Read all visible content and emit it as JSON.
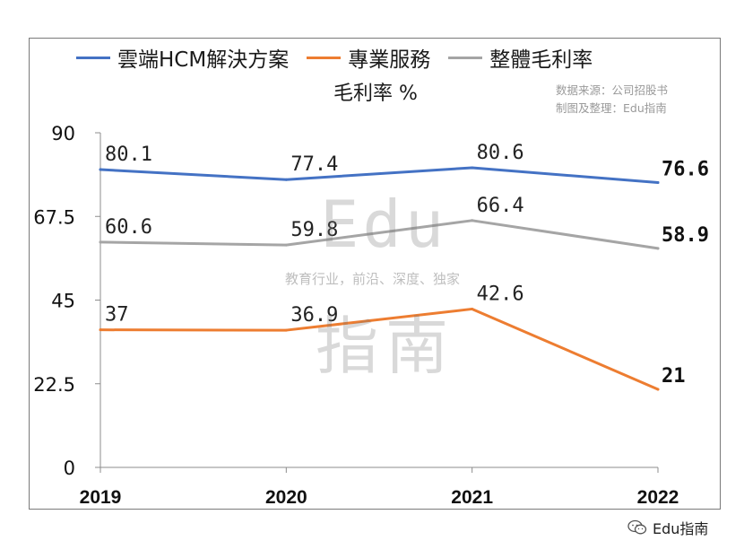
{
  "chart_data": {
    "type": "line",
    "title": "",
    "subtitle": "毛利率 %",
    "categories": [
      "2019",
      "2020",
      "2021",
      "2022"
    ],
    "ylim": [
      0,
      90
    ],
    "yticks": [
      "0",
      "22.5",
      "45",
      "67.5",
      "90"
    ],
    "grid": false,
    "legend_position": "top",
    "series": [
      {
        "name": "雲端HCM解決方案",
        "values": [
          80.1,
          77.4,
          80.6,
          76.6
        ],
        "labels": [
          "80.1",
          "77.4",
          "80.6",
          "76.6"
        ],
        "color": "#4472c4"
      },
      {
        "name": "專業服務",
        "values": [
          37,
          36.9,
          42.6,
          21
        ],
        "labels": [
          "37",
          "36.9",
          "42.6",
          "21"
        ],
        "color": "#ed7d31"
      },
      {
        "name": "整體毛利率",
        "values": [
          60.6,
          59.8,
          66.4,
          58.9
        ],
        "labels": [
          "60.6",
          "59.8",
          "66.4",
          "58.9"
        ],
        "color": "#a5a5a5"
      }
    ]
  },
  "source_line1": "数据来源：公司招股书",
  "source_line2": "制图及整理：Edu指南",
  "watermark_big_top": "Edu",
  "watermark_slogan": "教育行业，前沿、深度、独家",
  "watermark_big_bottom": "指南",
  "brand_label": "Edu指南",
  "brand_icon": "wechat-icon"
}
